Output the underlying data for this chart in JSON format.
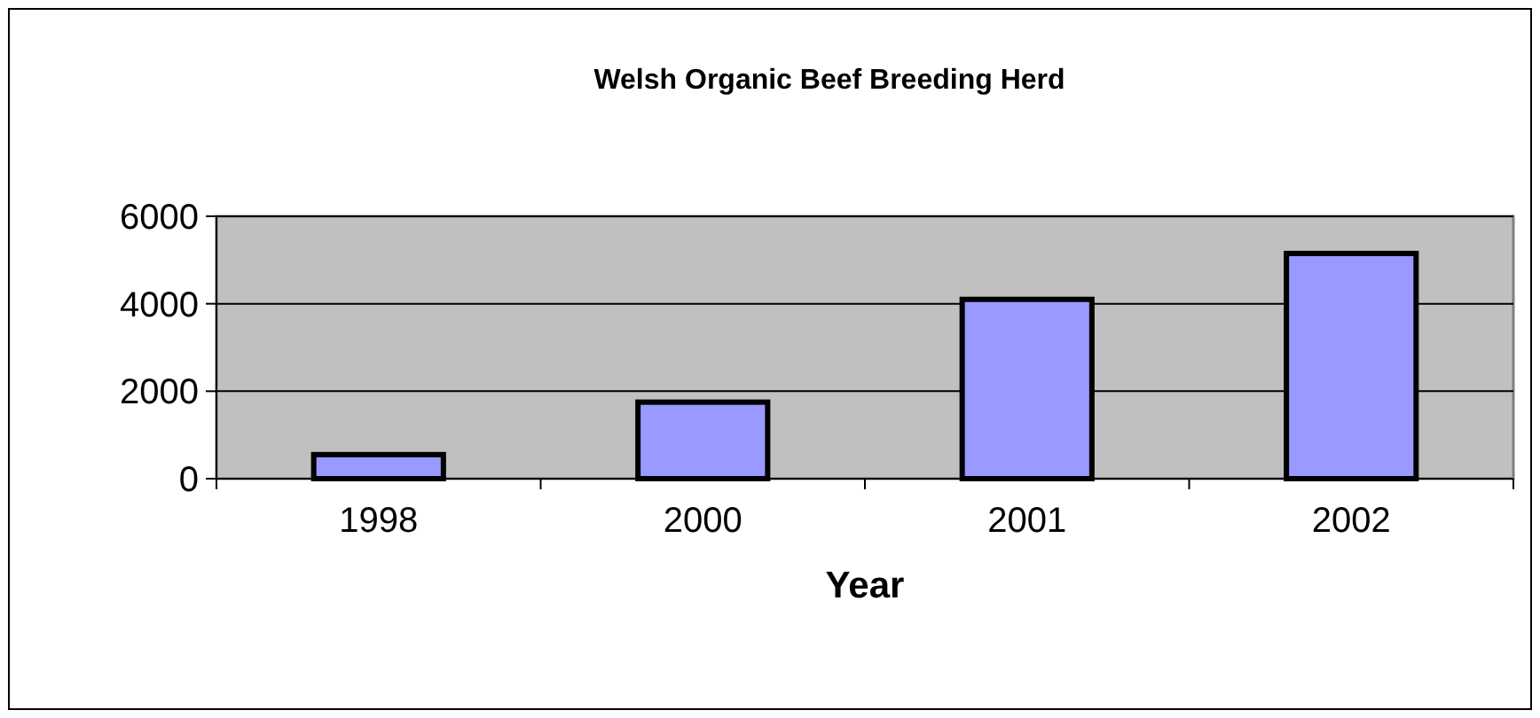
{
  "chart_data": {
    "type": "bar",
    "title": "Welsh Organic Beef Breeding Herd",
    "xlabel": "Year",
    "categories": [
      "1998",
      "2000",
      "2001",
      "2002"
    ],
    "values": [
      550,
      1750,
      4100,
      5150
    ],
    "color": "#9999ff",
    "ylim": [
      0,
      6000
    ],
    "yticks": [
      0,
      2000,
      4000,
      6000
    ],
    "grid": "y"
  }
}
